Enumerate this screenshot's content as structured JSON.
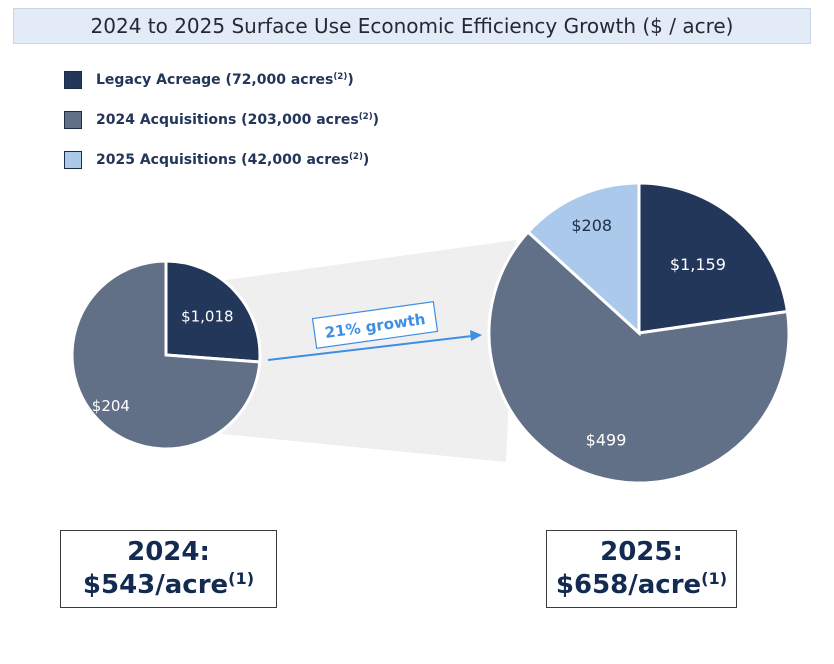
{
  "title": "2024 to 2025 Surface Use Economic Efficiency Growth ($ / acre)",
  "colors": {
    "legacy": "#22375a",
    "acq2024": "#627087",
    "acq2025": "#aac9eb",
    "connector": "#efefef",
    "arrow": "#3d8fe6"
  },
  "legend": [
    {
      "label": "Legacy Acreage (72,000 acres",
      "sup": "(2)",
      "close": ")",
      "color_key": "legacy"
    },
    {
      "label": "2024 Acquisitions (203,000 acres",
      "sup": "(2)",
      "close": ")",
      "color_key": "acq2024"
    },
    {
      "label": "2025 Acquisitions (42,000 acres",
      "sup": "(2)",
      "close": ")",
      "color_key": "acq2025"
    }
  ],
  "growth_label": "21% growth",
  "chart_data": [
    {
      "type": "pie",
      "name": "2024",
      "slices": [
        {
          "series": "Legacy Acreage",
          "value": 72000,
          "label": "$1,018"
        },
        {
          "series": "2024 Acquisitions",
          "value": 203000,
          "label": "$204"
        }
      ]
    },
    {
      "type": "pie",
      "name": "2025",
      "slices": [
        {
          "series": "Legacy Acreage",
          "value": 72000,
          "label": "$1,159"
        },
        {
          "series": "2024 Acquisitions",
          "value": 203000,
          "label": "$499"
        },
        {
          "series": "2025 Acquisitions",
          "value": 42000,
          "label": "$208"
        }
      ]
    }
  ],
  "summary": {
    "y2024": {
      "year": "2024:",
      "value": "$543/acre",
      "sup": "(1)"
    },
    "y2025": {
      "year": "2025:",
      "value": "$658/acre",
      "sup": "(1)"
    }
  }
}
